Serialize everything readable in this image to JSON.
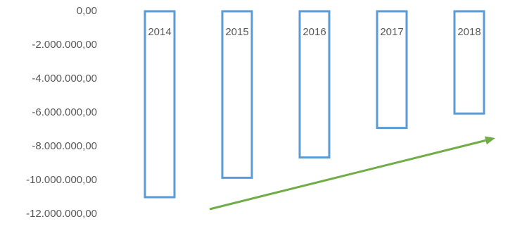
{
  "chart_data": {
    "type": "bar",
    "title": "",
    "xlabel": "",
    "ylabel": "",
    "categories": [
      "2014",
      "2015",
      "2016",
      "2017",
      "2018"
    ],
    "values": [
      -11000000,
      -9850000,
      -8650000,
      -6900000,
      -6050000
    ],
    "ylim": [
      -12000000,
      0
    ],
    "y_ticks": [
      0,
      -2000000,
      -4000000,
      -6000000,
      -8000000,
      -10000000,
      -12000000
    ],
    "y_tick_labels": [
      "0,00",
      "-2.000.000,00",
      "-4.000.000,00",
      "-6.000.000,00",
      "-8.000.000,00",
      "-10.000.000,00",
      "-12.000.000,00"
    ],
    "bar_style": "outline",
    "grid": false,
    "legend": "none",
    "annotation": "upward trend arrow",
    "colors": {
      "bar_outline": "#5B9BD5",
      "arrow": "#70AD47",
      "axis_text": "#595959"
    }
  }
}
